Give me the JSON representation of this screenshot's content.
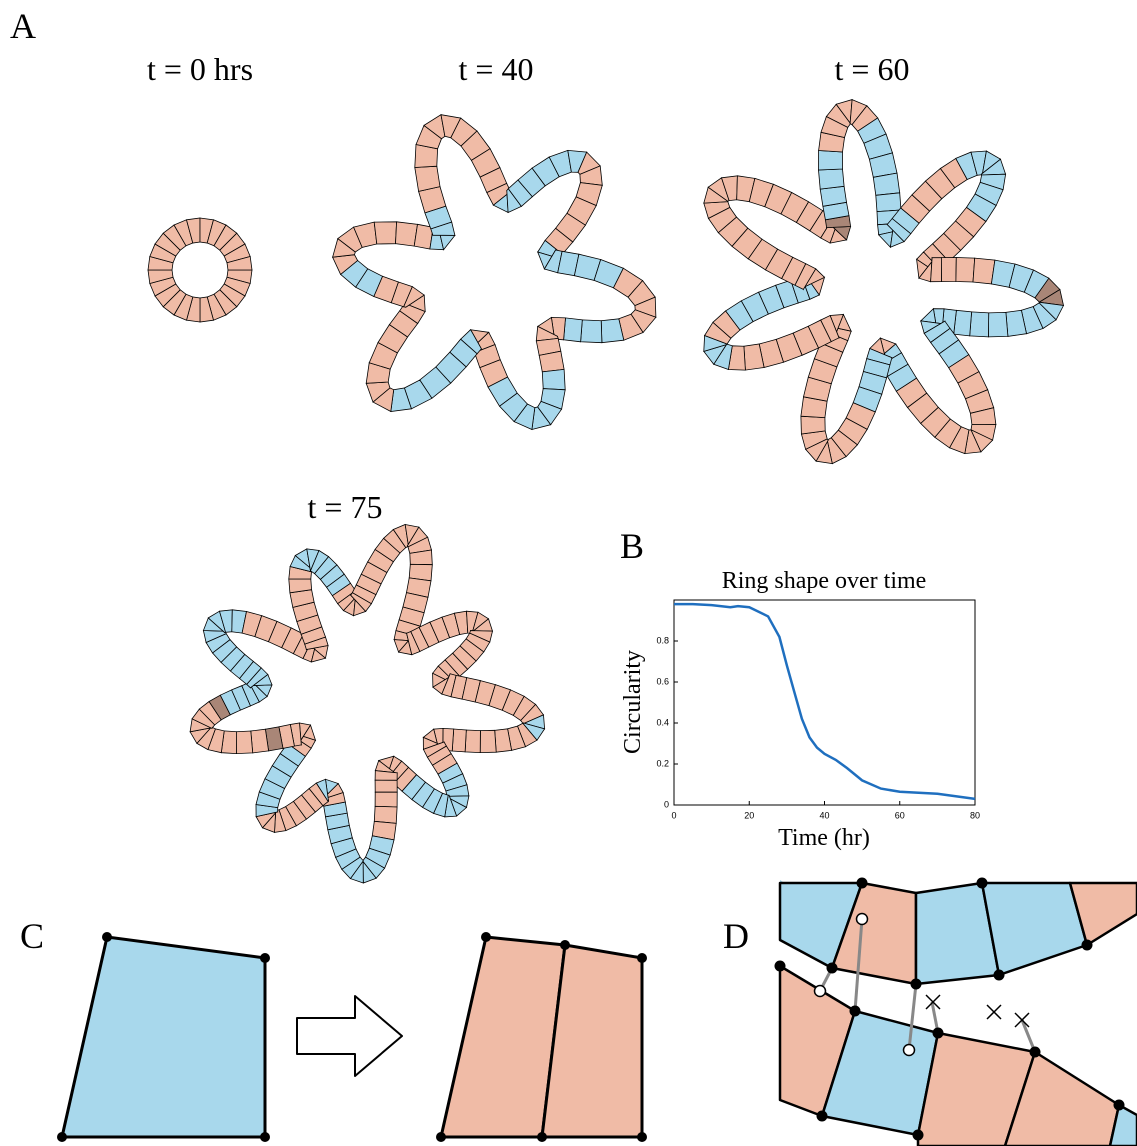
{
  "panels": {
    "a_label": "A",
    "b_label": "B",
    "c_label": "C",
    "d_label": "D",
    "time_labels": [
      "t = 0 hrs",
      "t = 40",
      "t = 60",
      "t = 75"
    ]
  },
  "chart_data": {
    "type": "line",
    "title": "Ring shape over time",
    "x_label": "Time (hr)",
    "y_label": "Circularity",
    "x": [
      0,
      5,
      10,
      15,
      17,
      20,
      25,
      28,
      30,
      32,
      34,
      36,
      38,
      40,
      43,
      46,
      50,
      55,
      60,
      70,
      80
    ],
    "values": [
      0.98,
      0.98,
      0.975,
      0.965,
      0.97,
      0.965,
      0.92,
      0.82,
      0.68,
      0.55,
      0.42,
      0.33,
      0.28,
      0.25,
      0.22,
      0.18,
      0.12,
      0.08,
      0.065,
      0.055,
      0.03
    ],
    "color": "#1f6fbf",
    "xlim": [
      0,
      80
    ],
    "xticks": [
      0,
      20,
      40,
      60,
      80
    ],
    "ylim": [
      0,
      1
    ],
    "yticks": [
      0,
      0.2,
      0.4,
      0.6,
      0.8
    ]
  }
}
